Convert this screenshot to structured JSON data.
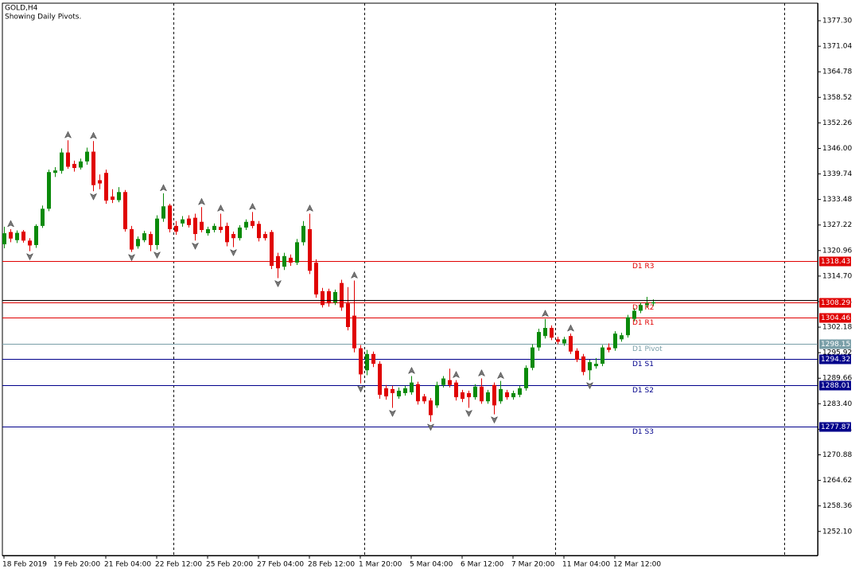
{
  "chart_data": {
    "type": "candlestick",
    "title": "GOLD,H4",
    "subtitle": "Showing Daily Pivots.",
    "up_color": "#0a8a0a",
    "down_color": "#e00000",
    "categories": [
      "18 Feb 2019",
      null,
      null,
      null,
      null,
      null,
      null,
      null,
      "19 Feb 20:00",
      null,
      null,
      null,
      null,
      null,
      null,
      null,
      "21 Feb 04:00",
      null,
      null,
      null,
      null,
      null,
      null,
      null,
      "22 Feb 12:00",
      null,
      null,
      null,
      null,
      null,
      null,
      null,
      "25 Feb 20:00",
      null,
      null,
      null,
      null,
      null,
      null,
      null,
      "27 Feb 04:00",
      null,
      null,
      null,
      null,
      null,
      null,
      null,
      "28 Feb 12:00",
      null,
      null,
      null,
      null,
      null,
      null,
      null,
      "1 Mar 20:00",
      null,
      null,
      null,
      null,
      null,
      null,
      null,
      "5 Mar 04:00",
      null,
      null,
      null,
      null,
      null,
      null,
      null,
      "6 Mar 12:00",
      null,
      null,
      null,
      null,
      null,
      null,
      null,
      "7 Mar 20:00",
      null,
      null,
      null,
      null,
      null,
      null,
      null,
      "11 Mar 04:00",
      null,
      null,
      null,
      null,
      null,
      null,
      null,
      "12 Mar 12:00",
      null,
      null,
      null,
      null,
      null,
      null
    ],
    "open": [
      1322.5,
      1325.5,
      1323.5,
      1325.6,
      1323.4,
      1322.3,
      1327.0,
      1331.2,
      1340.0,
      1340.5,
      1345.0,
      1342.2,
      1341.3,
      1342.8,
      1345.2,
      1338.2,
      1340.0,
      1334.2,
      1333.3,
      1335.3,
      1326.2,
      1322.0,
      1323.5,
      1325.0,
      1322.3,
      1328.8,
      1332.0,
      1327.0,
      1327.6,
      1328.8,
      1329.0,
      1328.0,
      1325.2,
      1326.0,
      1326.8,
      1327.0,
      1325.0,
      1324.0,
      1326.6,
      1328.2,
      1327.5,
      1325.0,
      1325.5,
      1319.6,
      1317.0,
      1319.2,
      1318.0,
      1323.0,
      1326.2,
      1318.0,
      1311.0,
      1311.0,
      1308.2,
      1313.0,
      1308.0,
      1305.0,
      1297.0,
      1291.6,
      1295.6,
      1293.2,
      1287.2,
      1287.0,
      1285.2,
      1286.0,
      1286.2,
      1288.2,
      1285.2,
      1284.2,
      1283.0,
      1288.0,
      1289.2,
      1288.6,
      1286.2,
      1286.0,
      1285.0,
      1287.6,
      1284.0,
      1288.0,
      1284.0,
      1286.2,
      1285.0,
      1285.6,
      1287.2,
      1292.2,
      1297.2,
      1300.0,
      1302.0,
      1299.2,
      1298.2,
      1300.0,
      1296.4,
      1295.0,
      1291.6,
      1292.6,
      1293.2,
      1297.2,
      1297.0,
      1299.2,
      1300.2,
      1304.2,
      1306.2,
      1307.6,
      1308.0
    ],
    "high": [
      1326.8,
      1326.2,
      1325.9,
      1326.0,
      1324.0,
      1327.4,
      1332.0,
      1340.8,
      1341.4,
      1346.0,
      1348.0,
      1343.0,
      1343.5,
      1346.2,
      1347.8,
      1339.6,
      1340.8,
      1336.0,
      1336.5,
      1335.8,
      1327.0,
      1324.4,
      1325.8,
      1325.6,
      1329.6,
      1335.0,
      1332.4,
      1328.2,
      1329.4,
      1329.6,
      1330.0,
      1331.6,
      1326.8,
      1327.6,
      1330.0,
      1327.8,
      1325.6,
      1327.2,
      1328.6,
      1330.4,
      1328.2,
      1325.6,
      1326.0,
      1320.4,
      1320.4,
      1320.0,
      1323.8,
      1328.2,
      1330.0,
      1318.8,
      1311.8,
      1311.6,
      1311.4,
      1313.8,
      1312.0,
      1313.6,
      1297.8,
      1296.6,
      1296.2,
      1293.8,
      1288.0,
      1287.8,
      1287.4,
      1287.8,
      1290.2,
      1288.8,
      1285.8,
      1284.8,
      1288.8,
      1290.2,
      1292.0,
      1289.2,
      1286.8,
      1286.6,
      1288.2,
      1289.6,
      1286.8,
      1288.6,
      1289.0,
      1286.8,
      1286.6,
      1287.8,
      1292.8,
      1298.0,
      1301.8,
      1304.2,
      1302.6,
      1299.8,
      1299.8,
      1300.6,
      1297.0,
      1295.6,
      1294.2,
      1294.6,
      1297.8,
      1298.2,
      1301.2,
      1300.8,
      1305.2,
      1306.8,
      1308.2,
      1309.6,
      1309.0
    ],
    "low": [
      1321.5,
      1323.0,
      1322.8,
      1322.9,
      1320.8,
      1321.6,
      1326.5,
      1330.6,
      1339.0,
      1339.8,
      1341.0,
      1340.3,
      1340.8,
      1342.0,
      1335.5,
      1336.0,
      1332.4,
      1332.6,
      1332.8,
      1325.6,
      1320.6,
      1321.4,
      1323.0,
      1320.8,
      1321.2,
      1328.0,
      1325.4,
      1324.8,
      1326.8,
      1326.6,
      1323.4,
      1325.4,
      1324.6,
      1325.4,
      1325.3,
      1322.0,
      1321.8,
      1323.4,
      1326.0,
      1326.4,
      1323.2,
      1323.4,
      1316.4,
      1314.2,
      1316.2,
      1317.2,
      1317.4,
      1322.2,
      1315.2,
      1309.4,
      1307.0,
      1307.2,
      1307.6,
      1306.2,
      1301.4,
      1296.0,
      1288.4,
      1290.4,
      1292.4,
      1284.6,
      1284.4,
      1282.4,
      1284.6,
      1285.4,
      1285.6,
      1283.2,
      1283.4,
      1279.0,
      1282.4,
      1287.4,
      1287.4,
      1284.2,
      1283.8,
      1282.4,
      1284.4,
      1283.4,
      1283.4,
      1280.8,
      1283.4,
      1284.4,
      1284.4,
      1285.0,
      1286.6,
      1291.6,
      1296.4,
      1299.4,
      1299.0,
      1298.0,
      1297.6,
      1295.6,
      1293.6,
      1290.4,
      1289.2,
      1292.0,
      1292.6,
      1296.0,
      1296.4,
      1298.6,
      1299.6,
      1303.6,
      1305.6,
      1307.0,
      1307.4
    ],
    "close": [
      1325.2,
      1323.9,
      1325.3,
      1323.4,
      1322.2,
      1327.0,
      1331.2,
      1340.2,
      1340.6,
      1345.0,
      1341.5,
      1341.2,
      1342.8,
      1345.2,
      1337.0,
      1337.4,
      1333.2,
      1333.4,
      1335.3,
      1326.2,
      1321.2,
      1323.8,
      1325.2,
      1322.3,
      1328.8,
      1331.8,
      1326.2,
      1325.6,
      1328.6,
      1327.2,
      1325.0,
      1326.0,
      1326.2,
      1327.0,
      1326.0,
      1323.0,
      1324.0,
      1326.6,
      1328.0,
      1327.0,
      1324.0,
      1324.0,
      1317.2,
      1316.6,
      1319.6,
      1318.0,
      1323.0,
      1327.0,
      1316.0,
      1310.2,
      1307.6,
      1308.0,
      1310.8,
      1307.0,
      1302.2,
      1297.0,
      1290.6,
      1295.6,
      1293.2,
      1285.6,
      1285.2,
      1286.0,
      1286.6,
      1287.2,
      1288.6,
      1284.0,
      1284.0,
      1280.6,
      1288.0,
      1289.6,
      1288.0,
      1285.0,
      1284.6,
      1285.0,
      1287.6,
      1284.0,
      1286.2,
      1283.0,
      1287.0,
      1285.0,
      1286.0,
      1287.2,
      1292.2,
      1297.2,
      1301.0,
      1302.0,
      1299.6,
      1298.6,
      1299.2,
      1296.2,
      1294.2,
      1291.2,
      1293.6,
      1293.2,
      1297.2,
      1296.6,
      1300.6,
      1300.2,
      1304.6,
      1306.2,
      1307.6,
      1308.0,
      1308.29
    ],
    "fractals_up": [
      1,
      10,
      14,
      25,
      31,
      34,
      39,
      48,
      55,
      64,
      71,
      75,
      78,
      85,
      89
    ],
    "fractals_down": [
      4,
      14,
      20,
      24,
      30,
      36,
      43,
      56,
      61,
      67,
      73,
      77,
      92
    ],
    "pivots": [
      {
        "name": "D1 R3",
        "value": 1318.43,
        "color": "#e00000"
      },
      {
        "name": "D1 R2",
        "value": 1308.29,
        "color": "#e00000"
      },
      {
        "name": "D1 R1",
        "value": 1304.46,
        "color": "#e00000"
      },
      {
        "name": "D1 Pivot",
        "value": 1298.15,
        "color": "#7a9fa8"
      },
      {
        "name": "D1 S1",
        "value": 1294.32,
        "color": "#00008b"
      },
      {
        "name": "D1 S2",
        "value": 1288.01,
        "color": "#00008b"
      },
      {
        "name": "D1 S3",
        "value": 1277.87,
        "color": "#00008b"
      }
    ],
    "ylim": [
      1246.2,
      1381.6
    ],
    "yticks": [
      {
        "value": 1377.3,
        "label": "1377.30"
      },
      1371.04,
      1364.78,
      1358.52,
      1352.26,
      {
        "value": 1346,
        "label": "1346.00"
      },
      1339.74,
      1333.48,
      1327.22,
      1320.96,
      {
        "value": 1314.7,
        "label": "1314.70"
      },
      1308.44,
      1302.18,
      1295.92,
      1289.66,
      {
        "value": 1283.4,
        "label": "1283.40"
      },
      1277.14,
      1270.88,
      1264.62,
      1258.36,
      {
        "value": 1252.1,
        "label": "1252.10"
      }
    ],
    "grid": true
  }
}
